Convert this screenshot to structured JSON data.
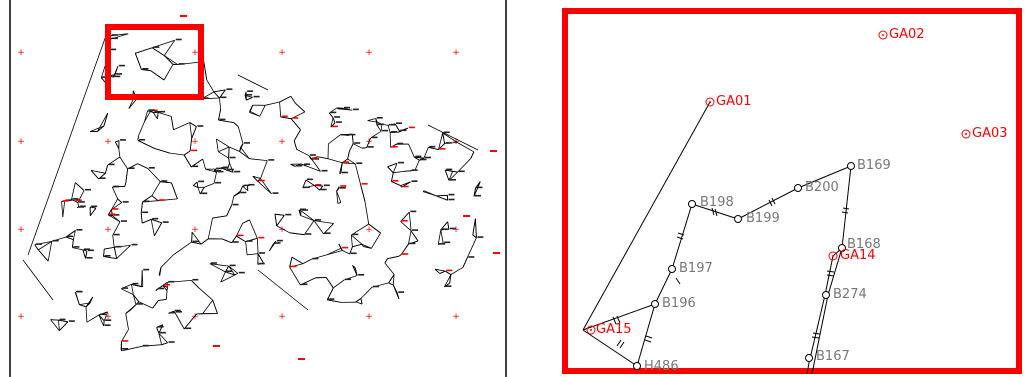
{
  "colors": {
    "network_line": "#000000",
    "control_point": "#ff0000",
    "benchmark_label": "#777777",
    "highlight_box": "#ff0000"
  },
  "overview": {
    "description_icon": "survey-network-overview"
  },
  "detail": {
    "control_points": [
      {
        "id": "GA01",
        "label": "GA01"
      },
      {
        "id": "GA02",
        "label": "GA02"
      },
      {
        "id": "GA03",
        "label": "GA03"
      },
      {
        "id": "GA14",
        "label": "GA14"
      },
      {
        "id": "GA15",
        "label": "GA15"
      }
    ],
    "benchmarks": [
      {
        "id": "B169",
        "label": "B169"
      },
      {
        "id": "B200",
        "label": "B200"
      },
      {
        "id": "B198",
        "label": "B198"
      },
      {
        "id": "B199",
        "label": "B199"
      },
      {
        "id": "B168",
        "label": "B168"
      },
      {
        "id": "B197",
        "label": "B197"
      },
      {
        "id": "B274",
        "label": "B274"
      },
      {
        "id": "B196",
        "label": "B196"
      },
      {
        "id": "B167",
        "label": "B167"
      },
      {
        "id": "H486",
        "label": "H486"
      }
    ]
  }
}
